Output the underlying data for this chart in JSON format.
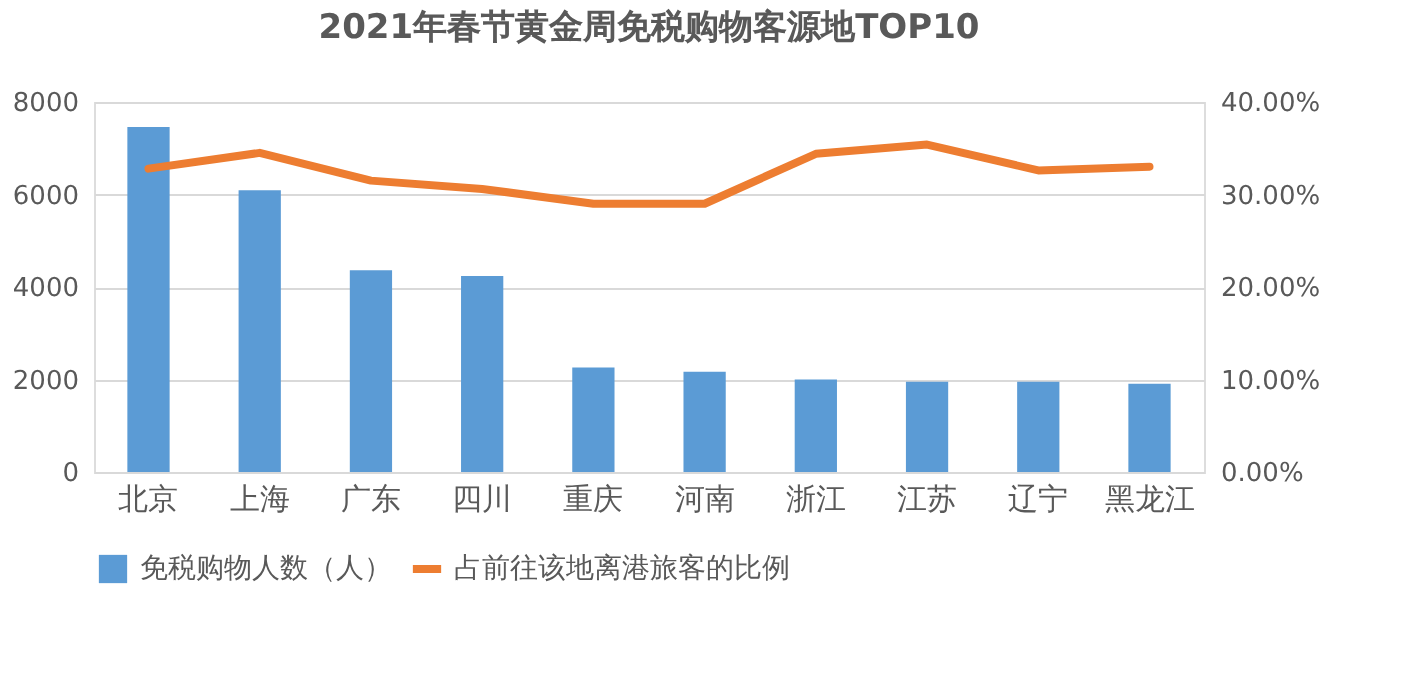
{
  "chart_data": {
    "type": "bar",
    "title": "2021年春节黄金周免税购物客源地TOP10",
    "categories": [
      "北京",
      "上海",
      "广东",
      "四川",
      "重庆",
      "河南",
      "浙江",
      "江苏",
      "辽宁",
      "黑龙江"
    ],
    "series": [
      {
        "name": "免税购物人数（人）",
        "color": "#5b9bd5",
        "values": [
          7460,
          6090,
          4360,
          4240,
          2260,
          2170,
          2000,
          1950,
          1950,
          1910
        ]
      },
      {
        "name": "占前往该地离港旅客的比例",
        "type": "line",
        "axis": "y2",
        "color": "#ed7d31",
        "values": [
          32.8,
          34.5,
          31.5,
          30.6,
          29.0,
          29.0,
          34.4,
          35.4,
          32.6,
          33.0
        ]
      }
    ],
    "ylim": [
      0,
      8000
    ],
    "yticks": [
      0,
      2000,
      4000,
      6000,
      8000
    ],
    "y2lim": [
      0,
      40
    ],
    "y2ticks": [
      {
        "value": 0,
        "label": "0.00%"
      },
      {
        "value": 10,
        "label": "10.00%"
      },
      {
        "value": 20,
        "label": "20.00%"
      },
      {
        "value": 30,
        "label": "30.00%"
      },
      {
        "value": 40,
        "label": "40.00%"
      }
    ],
    "grid": "y",
    "legend": "bottom",
    "line_style": "solid",
    "marker": "none"
  }
}
